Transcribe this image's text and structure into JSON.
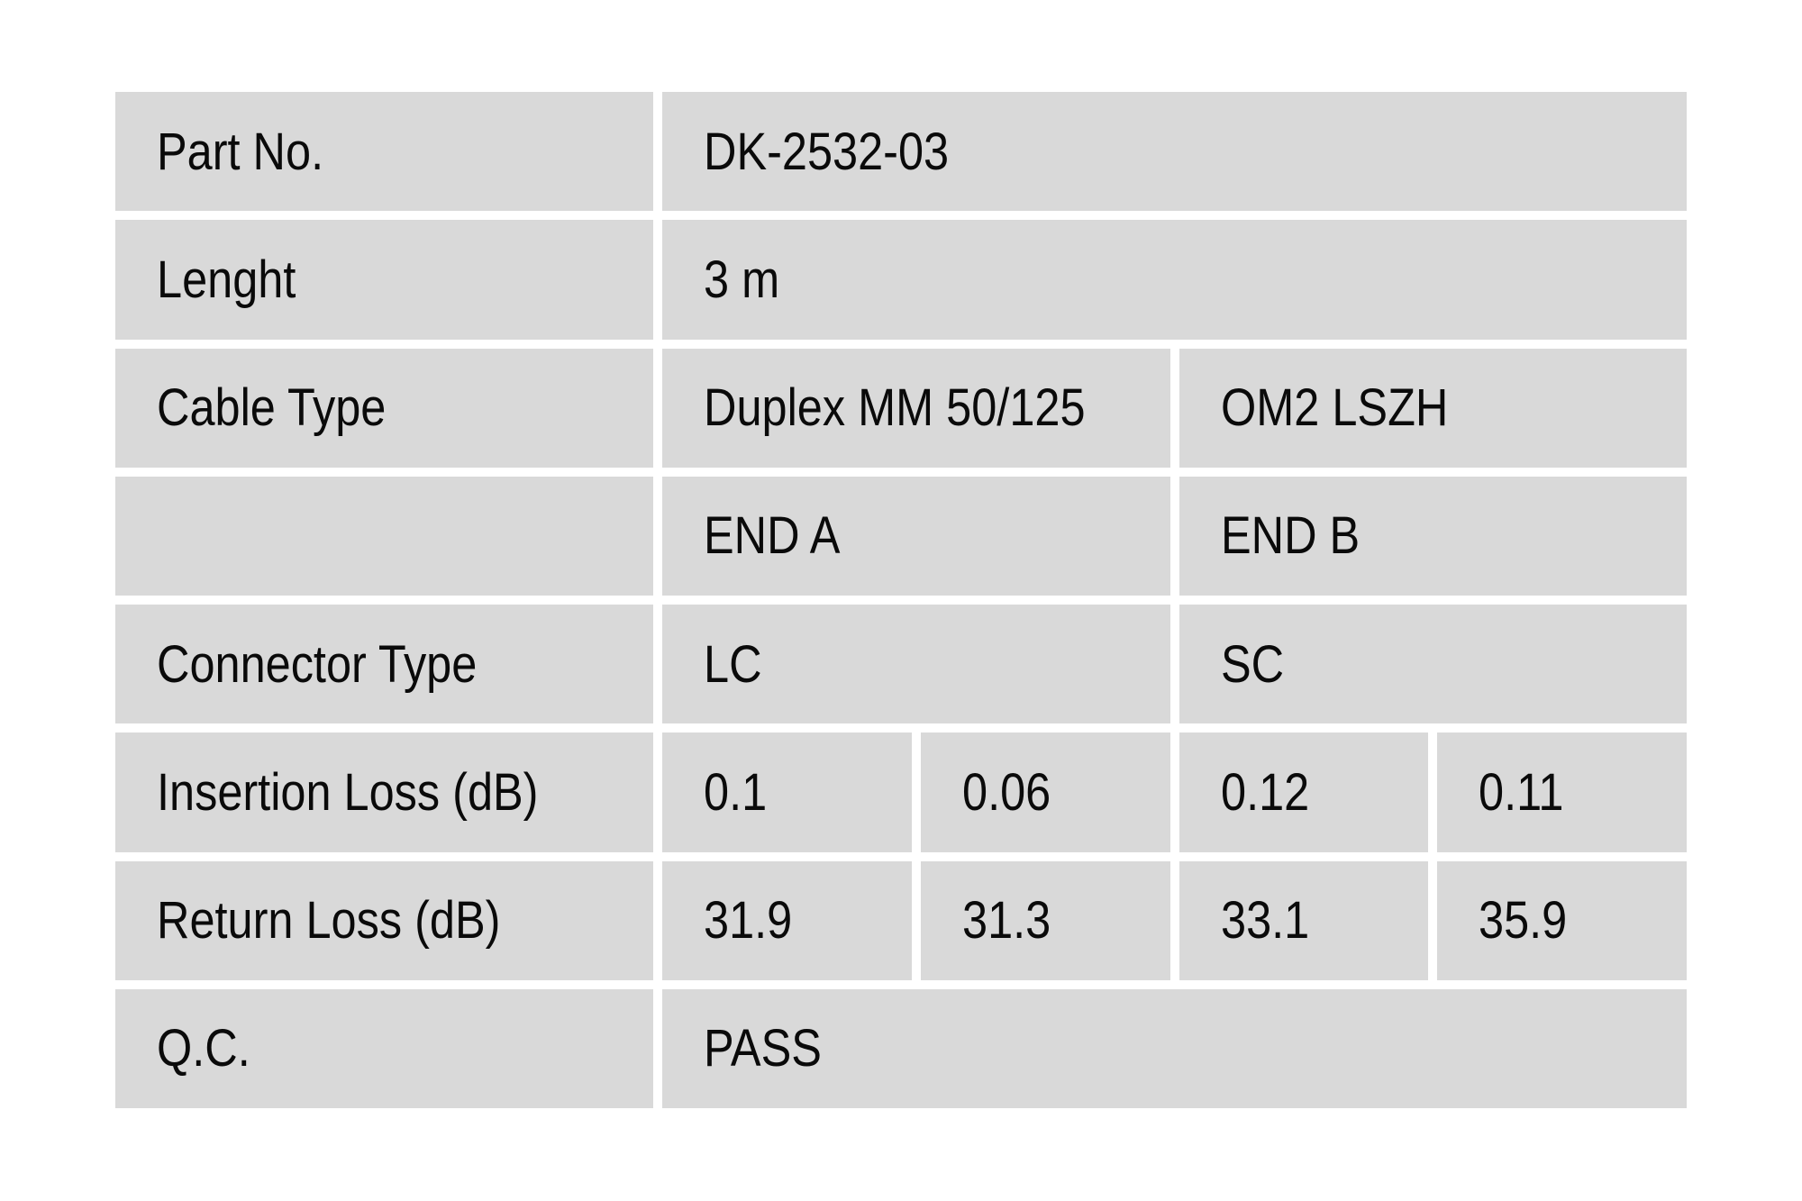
{
  "colors": {
    "page_bg": "#ffffff",
    "cell_bg": "#d9d9d9",
    "text": "#0a0a0a"
  },
  "table": {
    "column_headers": [
      "END A",
      "END B"
    ],
    "rows": [
      {
        "label": "Part No.",
        "values": [
          "DK-2532-03"
        ]
      },
      {
        "label": "Lenght",
        "values": [
          "3 m"
        ]
      },
      {
        "label": "Cable Type",
        "values": [
          "Duplex MM 50/125",
          "OM2 LSZH"
        ]
      },
      {
        "label": "",
        "values": [
          "END A",
          "END B"
        ]
      },
      {
        "label": "Connector Type",
        "values": [
          "LC",
          "SC"
        ]
      },
      {
        "label": "Insertion Loss (dB)",
        "values": [
          "0.1",
          "0.06",
          "0.12",
          "0.11"
        ]
      },
      {
        "label": "Return Loss (dB)",
        "values": [
          "31.9",
          "31.3",
          "33.1",
          "35.9"
        ]
      },
      {
        "label": "Q.C.",
        "values": [
          "PASS"
        ]
      }
    ]
  }
}
